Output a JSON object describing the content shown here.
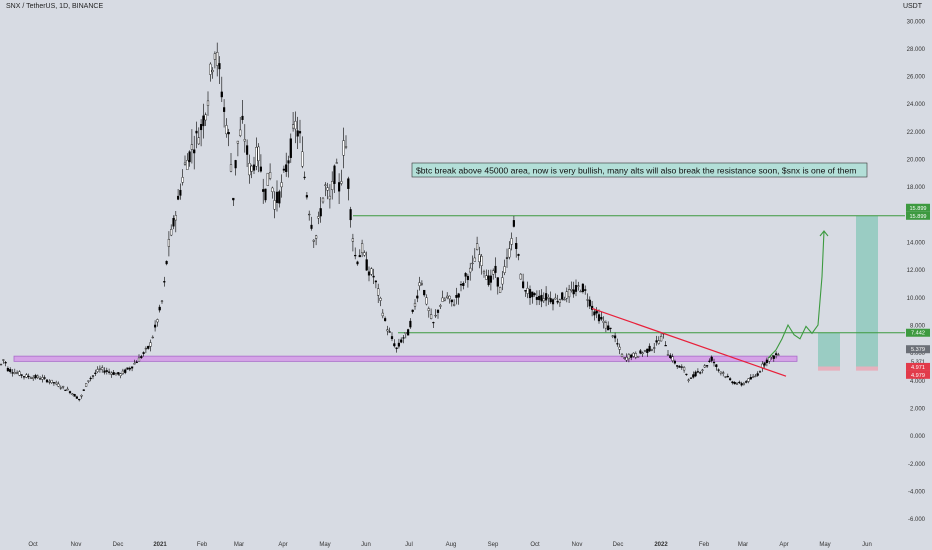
{
  "header": {
    "symbol_line": "SNX / TetherUS, 1D, BINANCE",
    "currency": "USDT"
  },
  "colors": {
    "background": "#d7dbe3",
    "candle_up": "#ffffff",
    "candle_down": "#000000",
    "trend_line": "#e8203a",
    "resistance_line": "#3d9a40",
    "support_zone": "#d59ee8",
    "projection": "#3d9a40",
    "target_zone": "#8fc9bd",
    "stop_zone": "#e9a9b6",
    "note_bg": "#b3dfd8"
  },
  "chart_data": {
    "type": "candlestick",
    "title": "SNX / TetherUS, 1D, BINANCE",
    "y_axis_label": "USDT",
    "ylim": [
      -6.6,
      31
    ],
    "y_ticks": [
      -6,
      -4,
      -2,
      0,
      2,
      4,
      6,
      8,
      10,
      12,
      14,
      16,
      18,
      20,
      22,
      24,
      26,
      28,
      30
    ],
    "y_tick_labels": [
      "-6.000",
      "-4.000",
      "-2.000",
      "0.000",
      "2.000",
      "4.000",
      "6.000",
      "8.000",
      "10.000",
      "12.000",
      "14.000",
      "16.000",
      "18.000",
      "20.000",
      "22.000",
      "24.000",
      "26.000",
      "28.000",
      "30.000"
    ],
    "x_tick_labels": [
      "Oct",
      "Nov",
      "Dec",
      "2021",
      "Feb",
      "Mar",
      "Apr",
      "May",
      "Jun",
      "Jul",
      "Aug",
      "Sep",
      "Oct",
      "Nov",
      "Dec",
      "2022",
      "Feb",
      "Mar",
      "Apr",
      "May",
      "Jun"
    ],
    "price_path": [
      [
        0,
        5.0
      ],
      [
        4,
        5.6
      ],
      [
        8,
        4.8
      ],
      [
        15,
        4.6
      ],
      [
        25,
        4.3
      ],
      [
        40,
        4.2
      ],
      [
        55,
        3.8
      ],
      [
        70,
        3.2
      ],
      [
        80,
        2.6
      ],
      [
        88,
        4.0
      ],
      [
        100,
        4.8
      ],
      [
        110,
        4.6
      ],
      [
        120,
        4.4
      ],
      [
        130,
        4.9
      ],
      [
        140,
        5.6
      ],
      [
        150,
        6.5
      ],
      [
        158,
        8.5
      ],
      [
        163,
        10.0
      ],
      [
        168,
        13.5
      ],
      [
        175,
        15.8
      ],
      [
        185,
        19.5
      ],
      [
        193,
        21.0
      ],
      [
        200,
        22.0
      ],
      [
        207,
        24.0
      ],
      [
        211,
        26.5
      ],
      [
        215,
        28.0
      ],
      [
        220,
        26.0
      ],
      [
        225,
        23.0
      ],
      [
        230,
        21.0
      ],
      [
        233,
        17.0
      ],
      [
        237,
        21.0
      ],
      [
        243,
        22.5
      ],
      [
        250,
        19.0
      ],
      [
        258,
        20.5
      ],
      [
        265,
        17.5
      ],
      [
        270,
        19.0
      ],
      [
        275,
        16.8
      ],
      [
        280,
        17.5
      ],
      [
        285,
        19.0
      ],
      [
        290,
        20.5
      ],
      [
        295,
        22.5
      ],
      [
        300,
        21.5
      ],
      [
        305,
        18.5
      ],
      [
        310,
        16.0
      ],
      [
        315,
        14.0
      ],
      [
        320,
        16.0
      ],
      [
        325,
        18.0
      ],
      [
        330,
        17.0
      ],
      [
        336,
        19.5
      ],
      [
        340,
        17.5
      ],
      [
        345,
        22.0
      ],
      [
        349,
        17.5
      ],
      [
        352,
        15.0
      ],
      [
        356,
        12.5
      ],
      [
        362,
        13.5
      ],
      [
        368,
        12.0
      ],
      [
        374,
        11.5
      ],
      [
        380,
        9.8
      ],
      [
        386,
        8.0
      ],
      [
        392,
        7.0
      ],
      [
        397,
        6.2
      ],
      [
        402,
        7.0
      ],
      [
        408,
        7.4
      ],
      [
        415,
        9.5
      ],
      [
        421,
        11.5
      ],
      [
        427,
        9.5
      ],
      [
        433,
        8.0
      ],
      [
        440,
        9.5
      ],
      [
        447,
        10.0
      ],
      [
        453,
        9.5
      ],
      [
        460,
        10.5
      ],
      [
        466,
        11.5
      ],
      [
        472,
        12.0
      ],
      [
        477,
        13.5
      ],
      [
        482,
        12.5
      ],
      [
        490,
        11.0
      ],
      [
        495,
        12.0
      ],
      [
        500,
        10.5
      ],
      [
        505,
        12.0
      ],
      [
        510,
        13.5
      ],
      [
        514,
        15.2
      ],
      [
        518,
        13.0
      ],
      [
        522,
        11.0
      ],
      [
        527,
        10.5
      ],
      [
        533,
        10.0
      ],
      [
        540,
        10.0
      ],
      [
        548,
        10.0
      ],
      [
        555,
        9.8
      ],
      [
        562,
        10.0
      ],
      [
        568,
        10.2
      ],
      [
        575,
        10.5
      ],
      [
        582,
        10.8
      ],
      [
        588,
        10.0
      ],
      [
        594,
        9.0
      ],
      [
        600,
        8.5
      ],
      [
        606,
        8.0
      ],
      [
        612,
        7.5
      ],
      [
        618,
        6.5
      ],
      [
        624,
        5.5
      ],
      [
        630,
        5.8
      ],
      [
        636,
        5.8
      ],
      [
        642,
        6.0
      ],
      [
        648,
        6.2
      ],
      [
        655,
        6.5
      ],
      [
        660,
        7.0
      ],
      [
        664,
        7.2
      ],
      [
        668,
        6.0
      ],
      [
        673,
        5.5
      ],
      [
        678,
        5.0
      ],
      [
        684,
        4.8
      ],
      [
        690,
        4.0
      ],
      [
        696,
        4.5
      ],
      [
        702,
        4.8
      ],
      [
        708,
        5.2
      ],
      [
        712,
        5.6
      ],
      [
        718,
        4.8
      ],
      [
        724,
        4.5
      ],
      [
        730,
        4.0
      ],
      [
        736,
        3.8
      ],
      [
        742,
        3.7
      ],
      [
        748,
        4.0
      ],
      [
        754,
        4.2
      ],
      [
        758,
        4.5
      ],
      [
        762,
        5.0
      ],
      [
        766,
        5.4
      ],
      [
        770,
        5.6
      ],
      [
        776,
        5.8
      ],
      [
        782,
        6.0
      ]
    ]
  },
  "annotations": {
    "note": "$btc break above 45000 area, now is very bullish, many alts will also break the resistance soon, $snx is one of them",
    "resistance_upper": 15.899,
    "resistance_lower": 7.442,
    "support_zone": [
      5.371,
      5.75
    ],
    "trend_line": {
      "from": [
        592,
        9.2
      ],
      "to": [
        786,
        4.3
      ]
    },
    "projection_path": [
      [
        768,
        5.6
      ],
      [
        776,
        6.2
      ],
      [
        782,
        7.0
      ],
      [
        788,
        8.0
      ],
      [
        794,
        7.3
      ],
      [
        800,
        7.0
      ],
      [
        806,
        7.9
      ],
      [
        812,
        7.4
      ],
      [
        818,
        8.0
      ],
      [
        822,
        11.5
      ],
      [
        824,
        14.8
      ]
    ],
    "target_boxes": [
      {
        "x": [
          818,
          840
        ],
        "bottom": 5.0,
        "top": 7.44,
        "stop": 4.7
      },
      {
        "x": [
          856,
          878
        ],
        "bottom": 5.0,
        "top": 15.899,
        "stop": 4.7
      }
    ],
    "price_tags": [
      {
        "label": "15.899",
        "value": 15.899,
        "color": "#3d9a40"
      },
      {
        "label": "7.442",
        "value": 7.442,
        "color": "#3d9a40"
      },
      {
        "label": "5.379",
        "value": 6.25,
        "color": "#6b6f77"
      },
      {
        "label": "5.371",
        "value": 5.371,
        "color": "#d7dbe3"
      },
      {
        "label": "4.971",
        "value": 4.97,
        "color": "#e23a4a"
      },
      {
        "label": "4.979",
        "value": 4.4,
        "color": "#e23a4a"
      }
    ]
  }
}
